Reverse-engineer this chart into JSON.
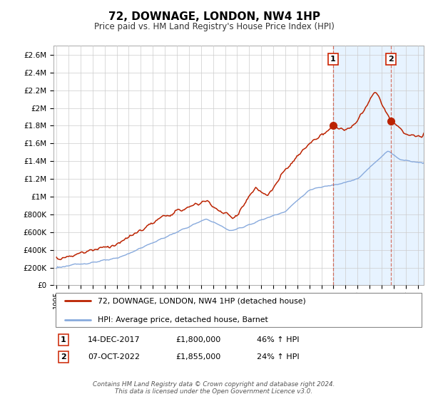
{
  "title": "72, DOWNAGE, LONDON, NW4 1HP",
  "subtitle": "Price paid vs. HM Land Registry's House Price Index (HPI)",
  "ylabel_ticks": [
    "£0",
    "£200K",
    "£400K",
    "£600K",
    "£800K",
    "£1M",
    "£1.2M",
    "£1.4M",
    "£1.6M",
    "£1.8M",
    "£2M",
    "£2.2M",
    "£2.4M",
    "£2.6M"
  ],
  "ytick_values": [
    0,
    200000,
    400000,
    600000,
    800000,
    1000000,
    1200000,
    1400000,
    1600000,
    1800000,
    2000000,
    2200000,
    2400000,
    2600000
  ],
  "ylim": [
    0,
    2700000
  ],
  "xlim_start": 1994.75,
  "xlim_end": 2025.5,
  "line1_color": "#bb2200",
  "line2_color": "#88aadd",
  "vline_color": "#cc2200",
  "shade_color": "#ddeeff",
  "sale1_x": 2017.958,
  "sale1_y": 1800000,
  "sale2_x": 2022.77,
  "sale2_y": 1855000,
  "legend_line1": "72, DOWNAGE, LONDON, NW4 1HP (detached house)",
  "legend_line2": "HPI: Average price, detached house, Barnet",
  "annotation1_num": "1",
  "annotation1_date": "14-DEC-2017",
  "annotation1_price": "£1,800,000",
  "annotation1_hpi": "46% ↑ HPI",
  "annotation2_num": "2",
  "annotation2_date": "07-OCT-2022",
  "annotation2_price": "£1,855,000",
  "annotation2_hpi": "24% ↑ HPI",
  "footer": "Contains HM Land Registry data © Crown copyright and database right 2024.\nThis data is licensed under the Open Government Licence v3.0."
}
